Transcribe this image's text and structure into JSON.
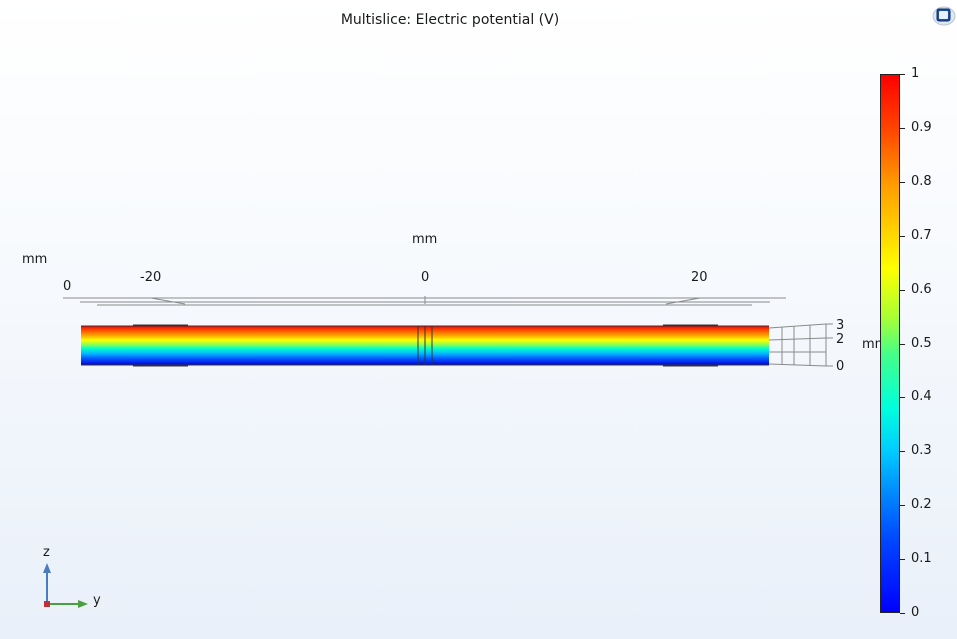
{
  "plot": {
    "title": "Multislice: Electric potential (V)"
  },
  "axes": {
    "left_unit": "mm",
    "top_unit": "mm",
    "right_unit": "mm",
    "left_tick": "0",
    "y_ticks": [
      "-20",
      "0",
      "20"
    ],
    "z_ticks": [
      "3",
      "2",
      "0"
    ]
  },
  "colorbar": {
    "ticks": [
      "1",
      "0.9",
      "0.8",
      "0.7",
      "0.6",
      "0.5",
      "0.4",
      "0.3",
      "0.2",
      "0.1",
      "0"
    ],
    "range": [
      0,
      1
    ],
    "colormap": "rainbow"
  },
  "triad": {
    "z_label": "z",
    "y_label": "y",
    "z_color": "#4a7cc0",
    "y_color": "#4aa040",
    "x_color": "#c0303a"
  },
  "toolbar": {
    "icon": "view-icon"
  }
}
